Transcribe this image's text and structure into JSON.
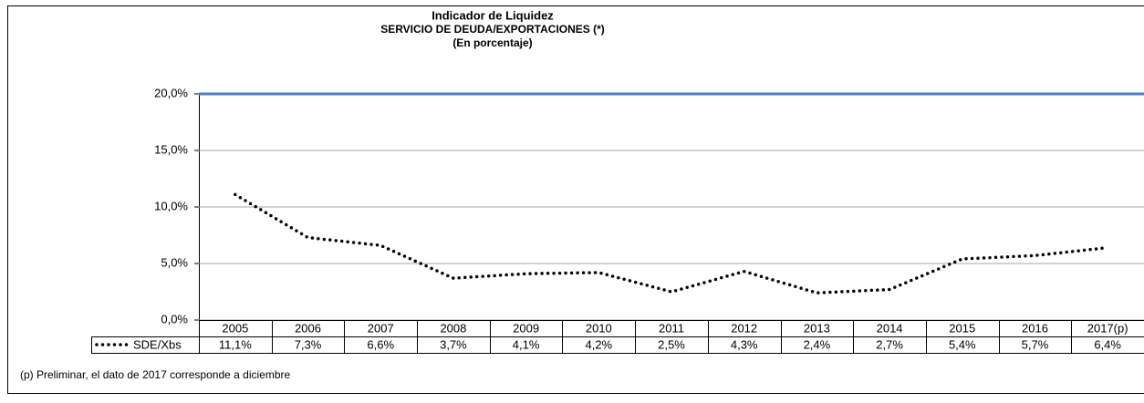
{
  "chart_data": {
    "type": "line",
    "title": "Indicador de Liquidez",
    "subtitle": "SERVICIO DE DEUDA/EXPORTACIONES (*)",
    "units": "(En porcentaje)",
    "categories": [
      "2005",
      "2006",
      "2007",
      "2008",
      "2009",
      "2010",
      "2011",
      "2012",
      "2013",
      "2014",
      "2015",
      "2016",
      "2017(p)"
    ],
    "series": [
      {
        "name": "SDE/Xbs",
        "color": "#000000",
        "values": [
          11.1,
          7.3,
          6.6,
          3.7,
          4.1,
          4.2,
          2.5,
          4.3,
          2.4,
          2.7,
          5.4,
          5.7,
          6.4
        ],
        "value_labels": [
          "11,1%",
          "7,3%",
          "6,6%",
          "3,7%",
          "4,1%",
          "4,2%",
          "2,5%",
          "4,3%",
          "2,4%",
          "2,7%",
          "5,4%",
          "5,7%",
          "6,4%"
        ]
      }
    ],
    "reference_line": {
      "value": 20,
      "color": "#4f81bd"
    },
    "ylim": [
      0,
      20
    ],
    "yticks": [
      {
        "value": 0,
        "label": "0,0%"
      },
      {
        "value": 5,
        "label": "5,0%"
      },
      {
        "value": 10,
        "label": "10,0%"
      },
      {
        "value": 15,
        "label": "15,0%"
      },
      {
        "value": 20,
        "label": "20,0%"
      }
    ],
    "grid": true,
    "footnote": "(p) Preliminar, el dato de 2017 corresponde a diciembre"
  }
}
